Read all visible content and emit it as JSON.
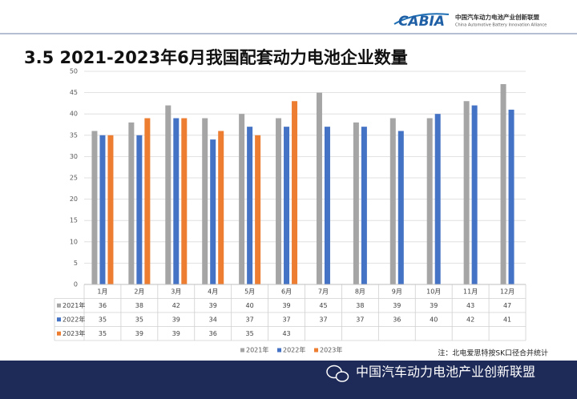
{
  "header": {
    "logo": "CABIA",
    "org_cn": "中国汽车动力电池产业创新联盟",
    "org_en": "China Automotive Battery Innovation Alliance"
  },
  "chart_data": {
    "type": "bar",
    "title": "3.5 2021-2023年6月我国配套动力电池企业数量",
    "categories": [
      "1月",
      "2月",
      "3月",
      "4月",
      "5月",
      "6月",
      "7月",
      "8月",
      "9月",
      "10月",
      "11月",
      "12月"
    ],
    "series": [
      {
        "name": "2021年",
        "color": "#a5a5a5",
        "values": [
          36,
          38,
          42,
          39,
          40,
          39,
          45,
          38,
          39,
          39,
          43,
          47
        ]
      },
      {
        "name": "2022年",
        "color": "#4472c4",
        "values": [
          35,
          35,
          39,
          34,
          37,
          37,
          37,
          37,
          36,
          40,
          42,
          41
        ]
      },
      {
        "name": "2023年",
        "color": "#ed7d31",
        "values": [
          35,
          39,
          39,
          36,
          35,
          43,
          null,
          null,
          null,
          null,
          null,
          null
        ]
      }
    ],
    "ylim": [
      0,
      50
    ],
    "yticks": [
      0,
      5,
      10,
      15,
      20,
      25,
      30,
      35,
      40,
      45,
      50
    ],
    "grid": true,
    "legend": "bottom",
    "note": "注：北电爱思特按SK口径合并统计"
  },
  "footer": {
    "text": "中国汽车动力电池产业创新联盟"
  }
}
